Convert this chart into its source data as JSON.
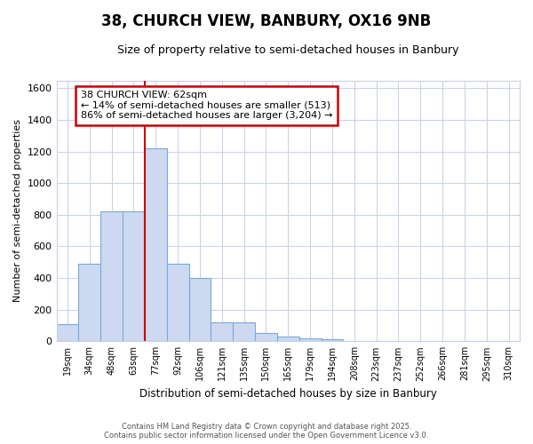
{
  "title": "38, CHURCH VIEW, BANBURY, OX16 9NB",
  "subtitle": "Size of property relative to semi-detached houses in Banbury",
  "xlabel": "Distribution of semi-detached houses by size in Banbury",
  "ylabel": "Number of semi-detached properties",
  "bar_color": "#ccd9f0",
  "bar_edge_color": "#7aa8d8",
  "bin_labels": [
    "19sqm",
    "34sqm",
    "48sqm",
    "63sqm",
    "77sqm",
    "92sqm",
    "106sqm",
    "121sqm",
    "135sqm",
    "150sqm",
    "165sqm",
    "179sqm",
    "194sqm",
    "208sqm",
    "223sqm",
    "237sqm",
    "252sqm",
    "266sqm",
    "281sqm",
    "295sqm",
    "310sqm"
  ],
  "bar_heights": [
    110,
    490,
    820,
    820,
    1220,
    490,
    400,
    120,
    120,
    55,
    30,
    20,
    15,
    0,
    0,
    0,
    0,
    0,
    0,
    0,
    0
  ],
  "vline_x": 3.5,
  "annotation_text": "38 CHURCH VIEW: 62sqm\n← 14% of semi-detached houses are smaller (513)\n86% of semi-detached houses are larger (3,204) →",
  "ylim": [
    0,
    1650
  ],
  "yticks": [
    0,
    200,
    400,
    600,
    800,
    1000,
    1200,
    1400,
    1600
  ],
  "background_color": "#ffffff",
  "plot_bg_color": "#ffffff",
  "grid_color": "#c8cfe8",
  "footnote": "Contains HM Land Registry data © Crown copyright and database right 2025.\nContains public sector information licensed under the Open Government Licence v3.0.",
  "vline_color": "#cc0000",
  "annotation_box_color": "#cc0000",
  "annotation_bg": "#ffffff",
  "title_fontsize": 12,
  "subtitle_fontsize": 9
}
